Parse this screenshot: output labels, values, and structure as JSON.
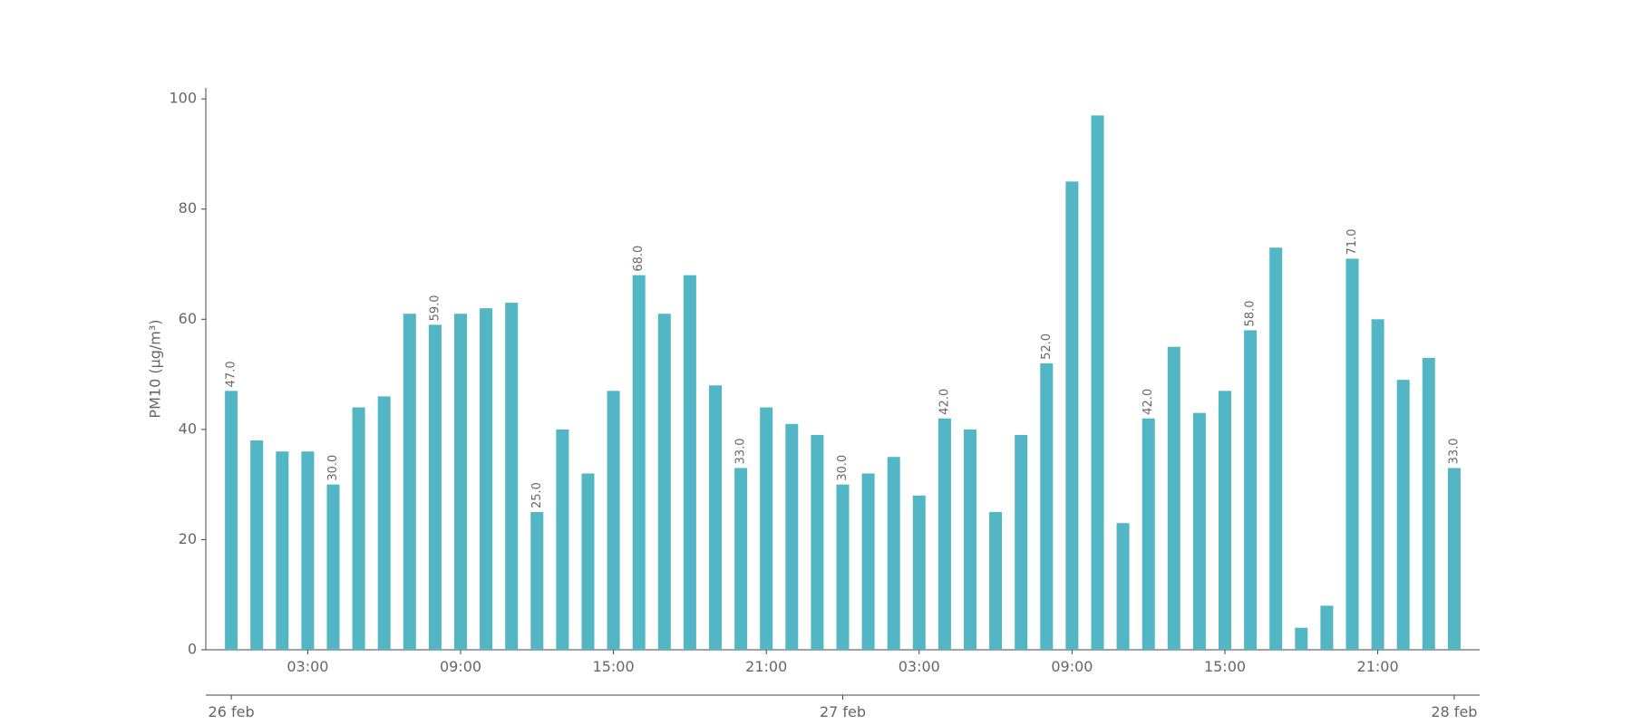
{
  "chart_data": {
    "type": "bar",
    "ylabel": "PM10 (μg/m³)",
    "color": "#52b6c4",
    "x": [
      0,
      1,
      2,
      3,
      4,
      5,
      6,
      7,
      8,
      9,
      10,
      11,
      12,
      13,
      14,
      15,
      16,
      17,
      18,
      19,
      20,
      21,
      22,
      23,
      24,
      25,
      26,
      27,
      28,
      29,
      30,
      31,
      32,
      33,
      34,
      35,
      36,
      37,
      38,
      39,
      40,
      41,
      42,
      43,
      44,
      45,
      46,
      47,
      48
    ],
    "values": [
      47,
      38,
      36,
      36,
      30,
      44,
      46,
      61,
      59,
      61,
      62,
      63,
      25,
      40,
      32,
      47,
      68,
      61,
      68,
      48,
      33,
      44,
      41,
      39,
      30,
      32,
      35,
      28,
      42,
      40,
      25,
      39,
      52,
      85,
      97,
      23,
      42,
      55,
      43,
      47,
      58,
      73,
      4,
      8,
      71,
      60,
      49,
      53,
      33
    ],
    "value_labels": [
      "47.0",
      null,
      null,
      null,
      "30.0",
      null,
      null,
      null,
      "59.0",
      null,
      null,
      null,
      "25.0",
      null,
      null,
      null,
      "68.0",
      null,
      null,
      null,
      "33.0",
      null,
      null,
      null,
      "30.0",
      null,
      null,
      null,
      "42.0",
      null,
      null,
      null,
      "52.0",
      null,
      null,
      null,
      "42.0",
      null,
      null,
      null,
      "58.0",
      null,
      null,
      null,
      "71.0",
      null,
      null,
      null,
      "33.0"
    ],
    "xlim": [
      -1,
      49
    ],
    "xticks": [
      {
        "value": 3,
        "label": "03:00"
      },
      {
        "value": 9,
        "label": "09:00"
      },
      {
        "value": 15,
        "label": "15:00"
      },
      {
        "value": 21,
        "label": "21:00"
      },
      {
        "value": 27,
        "label": "03:00"
      },
      {
        "value": 33,
        "label": "09:00"
      },
      {
        "value": 39,
        "label": "15:00"
      },
      {
        "value": 45,
        "label": "21:00"
      }
    ],
    "xticks_major": [
      {
        "value": 0,
        "label": "26 feb"
      },
      {
        "value": 24,
        "label": "27 feb"
      },
      {
        "value": 48,
        "label": "28 feb"
      }
    ],
    "ylim": [
      0,
      102
    ],
    "yticks": [
      0,
      20,
      40,
      60,
      80,
      100
    ]
  }
}
